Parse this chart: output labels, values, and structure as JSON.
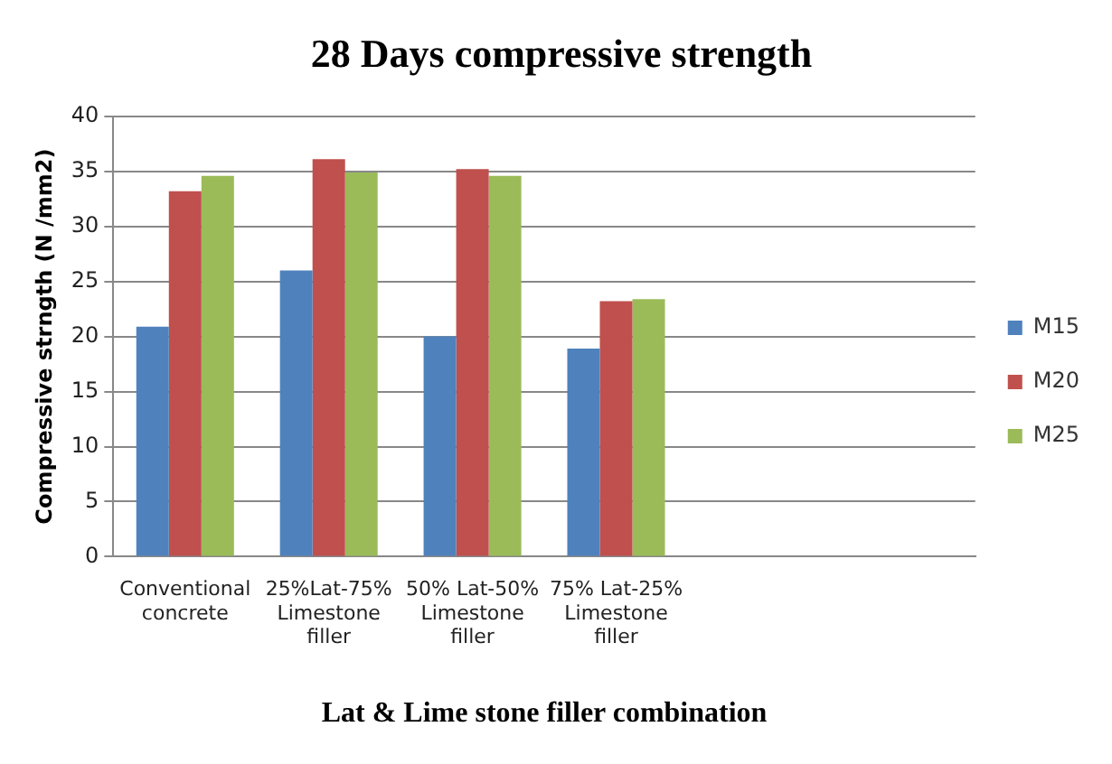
{
  "chart_data": {
    "type": "bar",
    "title": "28 Days compressive strength",
    "xlabel": "Lat & Lime stone filler combination",
    "ylabel": "Compressive strngth (N /mm2)",
    "categories": [
      "Conventional concrete",
      "25%Lat-75% Limestone filler",
      "50% Lat-50% Limestone filler",
      "75% Lat-25% Limestone filler",
      null,
      null
    ],
    "series": [
      {
        "name": "M15",
        "color": "#4f81bd",
        "values": [
          20.9,
          26.0,
          20.0,
          18.9,
          null,
          null
        ]
      },
      {
        "name": "M20",
        "color": "#c0504d",
        "values": [
          33.2,
          36.1,
          35.2,
          23.2,
          null,
          null
        ]
      },
      {
        "name": "M25",
        "color": "#9bbb59",
        "values": [
          34.6,
          34.9,
          34.6,
          23.4,
          null,
          null
        ]
      }
    ],
    "ylim": [
      0,
      40
    ],
    "yticks": [
      0,
      5,
      10,
      15,
      20,
      25,
      30,
      35,
      40
    ],
    "grid": "y",
    "legend": "right"
  }
}
